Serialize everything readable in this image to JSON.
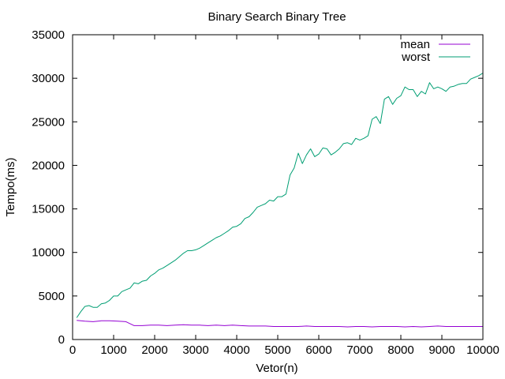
{
  "chart_data": {
    "type": "line",
    "title": "Binary Search Binary Tree",
    "xlabel": "Vetor(n)",
    "ylabel": "Tempo(ms)",
    "xlim": [
      0,
      10000
    ],
    "ylim": [
      0,
      35000
    ],
    "x_ticks": [
      0,
      1000,
      2000,
      3000,
      4000,
      5000,
      6000,
      7000,
      8000,
      9000,
      10000
    ],
    "y_ticks": [
      0,
      5000,
      10000,
      15000,
      20000,
      25000,
      30000,
      35000
    ],
    "grid": false,
    "legend_position": "top-right",
    "series": [
      {
        "name": "mean",
        "color": "#9400d3",
        "points": [
          [
            100,
            2200
          ],
          [
            300,
            2100
          ],
          [
            500,
            2050
          ],
          [
            700,
            2150
          ],
          [
            900,
            2150
          ],
          [
            1100,
            2100
          ],
          [
            1300,
            2050
          ],
          [
            1500,
            1600
          ],
          [
            1700,
            1600
          ],
          [
            1900,
            1650
          ],
          [
            2100,
            1650
          ],
          [
            2300,
            1600
          ],
          [
            2500,
            1650
          ],
          [
            2700,
            1700
          ],
          [
            2900,
            1650
          ],
          [
            3100,
            1650
          ],
          [
            3300,
            1600
          ],
          [
            3500,
            1650
          ],
          [
            3700,
            1600
          ],
          [
            3900,
            1650
          ],
          [
            4100,
            1600
          ],
          [
            4300,
            1550
          ],
          [
            4500,
            1550
          ],
          [
            4700,
            1550
          ],
          [
            4900,
            1500
          ],
          [
            5100,
            1500
          ],
          [
            5300,
            1500
          ],
          [
            5500,
            1500
          ],
          [
            5700,
            1550
          ],
          [
            5900,
            1500
          ],
          [
            6100,
            1500
          ],
          [
            6300,
            1500
          ],
          [
            6500,
            1500
          ],
          [
            6700,
            1450
          ],
          [
            6900,
            1500
          ],
          [
            7100,
            1500
          ],
          [
            7300,
            1450
          ],
          [
            7500,
            1500
          ],
          [
            7700,
            1500
          ],
          [
            7900,
            1500
          ],
          [
            8100,
            1450
          ],
          [
            8300,
            1500
          ],
          [
            8500,
            1450
          ],
          [
            8700,
            1500
          ],
          [
            8900,
            1550
          ],
          [
            9100,
            1500
          ],
          [
            9300,
            1500
          ],
          [
            9500,
            1500
          ],
          [
            9700,
            1500
          ],
          [
            10000,
            1500
          ]
        ]
      },
      {
        "name": "worst",
        "color": "#009e73",
        "points": [
          [
            100,
            2500
          ],
          [
            200,
            3200
          ],
          [
            300,
            3800
          ],
          [
            400,
            3900
          ],
          [
            500,
            3700
          ],
          [
            600,
            3700
          ],
          [
            700,
            4100
          ],
          [
            800,
            4200
          ],
          [
            900,
            4500
          ],
          [
            1000,
            5000
          ],
          [
            1100,
            5000
          ],
          [
            1200,
            5500
          ],
          [
            1300,
            5700
          ],
          [
            1400,
            5900
          ],
          [
            1500,
            6500
          ],
          [
            1600,
            6400
          ],
          [
            1700,
            6700
          ],
          [
            1800,
            6800
          ],
          [
            1900,
            7300
          ],
          [
            2000,
            7600
          ],
          [
            2100,
            8000
          ],
          [
            2200,
            8200
          ],
          [
            2300,
            8500
          ],
          [
            2400,
            8800
          ],
          [
            2500,
            9100
          ],
          [
            2600,
            9500
          ],
          [
            2700,
            9900
          ],
          [
            2800,
            10200
          ],
          [
            2900,
            10200
          ],
          [
            3000,
            10300
          ],
          [
            3100,
            10500
          ],
          [
            3200,
            10800
          ],
          [
            3300,
            11100
          ],
          [
            3400,
            11400
          ],
          [
            3500,
            11700
          ],
          [
            3600,
            11900
          ],
          [
            3700,
            12200
          ],
          [
            3800,
            12500
          ],
          [
            3900,
            12900
          ],
          [
            4000,
            13000
          ],
          [
            4100,
            13300
          ],
          [
            4200,
            13900
          ],
          [
            4300,
            14100
          ],
          [
            4400,
            14600
          ],
          [
            4500,
            15200
          ],
          [
            4600,
            15400
          ],
          [
            4700,
            15600
          ],
          [
            4800,
            16000
          ],
          [
            4900,
            15900
          ],
          [
            5000,
            16400
          ],
          [
            5100,
            16400
          ],
          [
            5200,
            16700
          ],
          [
            5300,
            18900
          ],
          [
            5400,
            19700
          ],
          [
            5500,
            21400
          ],
          [
            5600,
            20200
          ],
          [
            5700,
            21200
          ],
          [
            5800,
            21900
          ],
          [
            5900,
            21000
          ],
          [
            6000,
            21300
          ],
          [
            6100,
            22000
          ],
          [
            6200,
            21900
          ],
          [
            6300,
            21200
          ],
          [
            6400,
            21500
          ],
          [
            6500,
            21900
          ],
          [
            6600,
            22500
          ],
          [
            6700,
            22600
          ],
          [
            6800,
            22400
          ],
          [
            6900,
            23100
          ],
          [
            7000,
            22900
          ],
          [
            7100,
            23100
          ],
          [
            7200,
            23400
          ],
          [
            7300,
            25300
          ],
          [
            7400,
            25600
          ],
          [
            7500,
            24800
          ],
          [
            7600,
            27600
          ],
          [
            7700,
            27900
          ],
          [
            7800,
            27000
          ],
          [
            7900,
            27700
          ],
          [
            8000,
            28000
          ],
          [
            8100,
            29000
          ],
          [
            8200,
            28700
          ],
          [
            8300,
            28700
          ],
          [
            8400,
            27900
          ],
          [
            8500,
            28500
          ],
          [
            8600,
            28200
          ],
          [
            8700,
            29500
          ],
          [
            8800,
            28800
          ],
          [
            8900,
            29000
          ],
          [
            9000,
            28800
          ],
          [
            9100,
            28500
          ],
          [
            9200,
            29000
          ],
          [
            9300,
            29100
          ],
          [
            9400,
            29300
          ],
          [
            9500,
            29400
          ],
          [
            9600,
            29400
          ],
          [
            9700,
            29900
          ],
          [
            9800,
            30100
          ],
          [
            9900,
            30300
          ],
          [
            10000,
            30600
          ]
        ]
      }
    ]
  }
}
